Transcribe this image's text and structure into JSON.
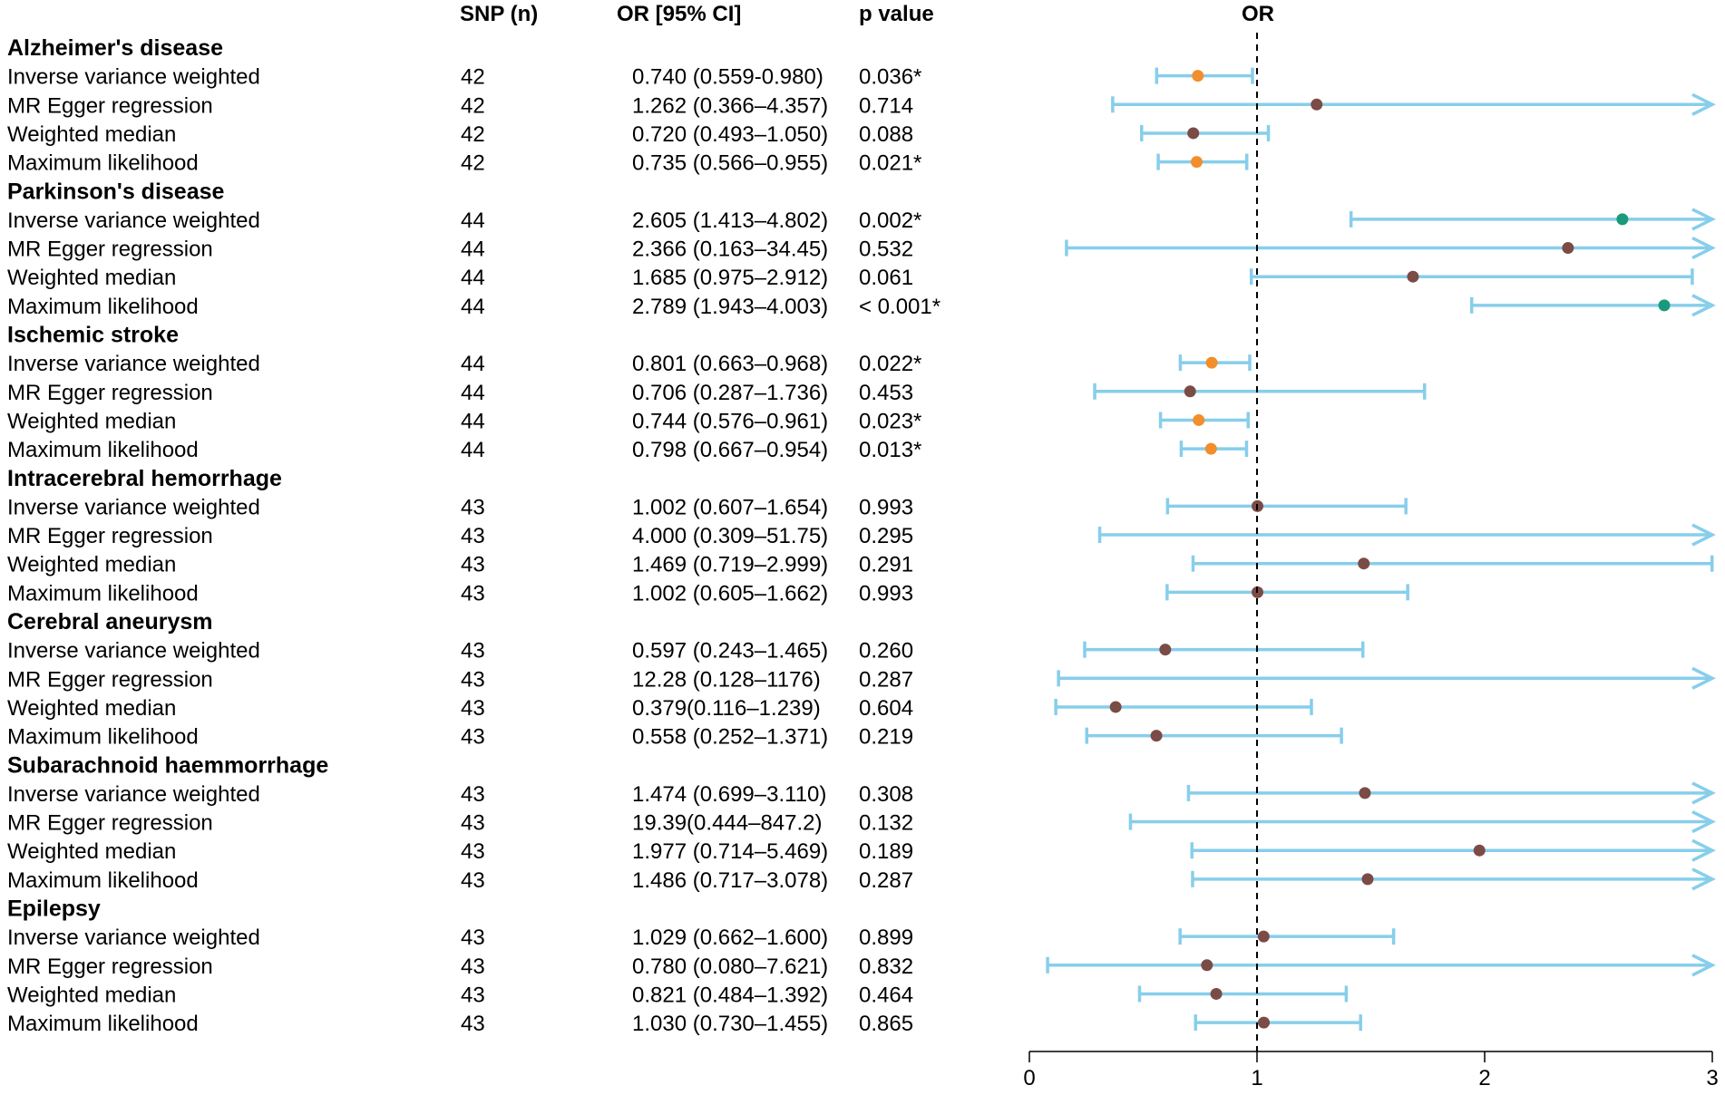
{
  "chart_data": {
    "type": "forest",
    "headers": {
      "snp": "SNP (n)",
      "or_ci": "OR [95% CI]",
      "p": "p value",
      "plot": "OR"
    },
    "x_axis": {
      "min": 0,
      "max": 3,
      "ticks": [
        0,
        1,
        2,
        3
      ],
      "reference_line": 1
    },
    "colors": {
      "ci_line": "#87CEEB",
      "point_significant_protective": "#F28E2B",
      "point_significant_risk": "#1A9A7B",
      "point_nonsignificant": "#7B4B46",
      "reference_line": "#000000"
    },
    "groups": [
      {
        "name": "Alzheimer's disease",
        "rows": [
          {
            "method": "Inverse variance weighted",
            "snp": "42",
            "or_ci": "0.740 (0.559-0.980)",
            "p": "0.036*",
            "or": 0.74,
            "lo": 0.559,
            "hi": 0.98,
            "sig": "protective"
          },
          {
            "method": "MR Egger regression",
            "snp": "42",
            "or_ci": "1.262 (0.366–4.357)",
            "p": "0.714",
            "or": 1.262,
            "lo": 0.366,
            "hi": 4.357,
            "sig": "none"
          },
          {
            "method": "Weighted median",
            "snp": "42",
            "or_ci": "0.720 (0.493–1.050)",
            "p": "0.088",
            "or": 0.72,
            "lo": 0.493,
            "hi": 1.05,
            "sig": "none"
          },
          {
            "method": "Maximum likelihood",
            "snp": "42",
            "or_ci": "0.735 (0.566–0.955)",
            "p": "0.021*",
            "or": 0.735,
            "lo": 0.566,
            "hi": 0.955,
            "sig": "protective"
          }
        ]
      },
      {
        "name": "Parkinson's disease",
        "rows": [
          {
            "method": "Inverse variance weighted",
            "snp": "44",
            "or_ci": "2.605 (1.413–4.802)",
            "p": "0.002*",
            "or": 2.605,
            "lo": 1.413,
            "hi": 4.802,
            "sig": "risk"
          },
          {
            "method": "MR Egger regression",
            "snp": "44",
            "or_ci": "2.366 (0.163–34.45)",
            "p": "0.532",
            "or": 2.366,
            "lo": 0.163,
            "hi": 34.45,
            "sig": "none"
          },
          {
            "method": "Weighted median",
            "snp": "44",
            "or_ci": "1.685 (0.975–2.912)",
            "p": "0.061",
            "or": 1.685,
            "lo": 0.975,
            "hi": 2.912,
            "sig": "none"
          },
          {
            "method": "Maximum likelihood",
            "snp": "44",
            "or_ci": "2.789 (1.943–4.003)",
            "p": "< 0.001*",
            "or": 2.789,
            "lo": 1.943,
            "hi": 4.003,
            "sig": "risk"
          }
        ]
      },
      {
        "name": "Ischemic stroke",
        "rows": [
          {
            "method": "Inverse variance weighted",
            "snp": "44",
            "or_ci": "0.801 (0.663–0.968)",
            "p": "0.022*",
            "or": 0.801,
            "lo": 0.663,
            "hi": 0.968,
            "sig": "protective"
          },
          {
            "method": "MR Egger regression",
            "snp": "44",
            "or_ci": "0.706 (0.287–1.736)",
            "p": "0.453",
            "or": 0.706,
            "lo": 0.287,
            "hi": 1.736,
            "sig": "none"
          },
          {
            "method": "Weighted median",
            "snp": "44",
            "or_ci": "0.744 (0.576–0.961)",
            "p": "0.023*",
            "or": 0.744,
            "lo": 0.576,
            "hi": 0.961,
            "sig": "protective"
          },
          {
            "method": "Maximum likelihood",
            "snp": "44",
            "or_ci": "0.798 (0.667–0.954)",
            "p": "0.013*",
            "or": 0.798,
            "lo": 0.667,
            "hi": 0.954,
            "sig": "protective"
          }
        ]
      },
      {
        "name": "Intracerebral hemorrhage",
        "rows": [
          {
            "method": "Inverse variance weighted",
            "snp": "43",
            "or_ci": "1.002 (0.607–1.654)",
            "p": "0.993",
            "or": 1.002,
            "lo": 0.607,
            "hi": 1.654,
            "sig": "none"
          },
          {
            "method": "MR Egger regression",
            "snp": "43",
            "or_ci": "4.000 (0.309–51.75)",
            "p": "0.295",
            "or": 4.0,
            "lo": 0.309,
            "hi": 51.75,
            "sig": "none"
          },
          {
            "method": "Weighted median",
            "snp": "43",
            "or_ci": "1.469 (0.719–2.999)",
            "p": "0.291",
            "or": 1.469,
            "lo": 0.719,
            "hi": 2.999,
            "sig": "none"
          },
          {
            "method": "Maximum likelihood",
            "snp": "43",
            "or_ci": "1.002 (0.605–1.662)",
            "p": "0.993",
            "or": 1.002,
            "lo": 0.605,
            "hi": 1.662,
            "sig": "none"
          }
        ]
      },
      {
        "name": "Cerebral aneurysm",
        "rows": [
          {
            "method": "Inverse variance weighted",
            "snp": "43",
            "or_ci": "0.597 (0.243–1.465)",
            "p": "0.260",
            "or": 0.597,
            "lo": 0.243,
            "hi": 1.465,
            "sig": "none"
          },
          {
            "method": "MR Egger regression",
            "snp": "43",
            "or_ci": "12.28 (0.128–1176)",
            "p": "0.287",
            "or": 12.28,
            "lo": 0.128,
            "hi": 1176,
            "sig": "none"
          },
          {
            "method": "Weighted median",
            "snp": "43",
            "or_ci": "0.379(0.116–1.239)",
            "p": "0.604",
            "or": 0.379,
            "lo": 0.116,
            "hi": 1.239,
            "sig": "none"
          },
          {
            "method": "Maximum likelihood",
            "snp": "43",
            "or_ci": "0.558 (0.252–1.371)",
            "p": "0.219",
            "or": 0.558,
            "lo": 0.252,
            "hi": 1.371,
            "sig": "none"
          }
        ]
      },
      {
        "name": "Subarachnoid haemmorrhage",
        "rows": [
          {
            "method": "Inverse variance weighted",
            "snp": "43",
            "or_ci": "1.474 (0.699–3.110)",
            "p": "0.308",
            "or": 1.474,
            "lo": 0.699,
            "hi": 3.11,
            "sig": "none"
          },
          {
            "method": "MR Egger regression",
            "snp": "43",
            "or_ci": "19.39(0.444–847.2)",
            "p": "0.132",
            "or": 19.39,
            "lo": 0.444,
            "hi": 847.2,
            "sig": "none"
          },
          {
            "method": "Weighted median",
            "snp": "43",
            "or_ci": "1.977 (0.714–5.469)",
            "p": "0.189",
            "or": 1.977,
            "lo": 0.714,
            "hi": 5.469,
            "sig": "none"
          },
          {
            "method": "Maximum likelihood",
            "snp": "43",
            "or_ci": "1.486 (0.717–3.078)",
            "p": "0.287",
            "or": 1.486,
            "lo": 0.717,
            "hi": 3.078,
            "sig": "none"
          }
        ]
      },
      {
        "name": "Epilepsy",
        "rows": [
          {
            "method": "Inverse variance weighted",
            "snp": "43",
            "or_ci": "1.029 (0.662–1.600)",
            "p": "0.899",
            "or": 1.029,
            "lo": 0.662,
            "hi": 1.6,
            "sig": "none"
          },
          {
            "method": "MR Egger regression",
            "snp": "43",
            "or_ci": "0.780 (0.080–7.621)",
            "p": "0.832",
            "or": 0.78,
            "lo": 0.08,
            "hi": 7.621,
            "sig": "none"
          },
          {
            "method": "Weighted median",
            "snp": "43",
            "or_ci": "0.821 (0.484–1.392)",
            "p": "0.464",
            "or": 0.821,
            "lo": 0.484,
            "hi": 1.392,
            "sig": "none"
          },
          {
            "method": "Maximum likelihood",
            "snp": "43",
            "or_ci": "1.030 (0.730–1.455)",
            "p": "0.865",
            "or": 1.03,
            "lo": 0.73,
            "hi": 1.455,
            "sig": "none"
          }
        ]
      }
    ]
  }
}
